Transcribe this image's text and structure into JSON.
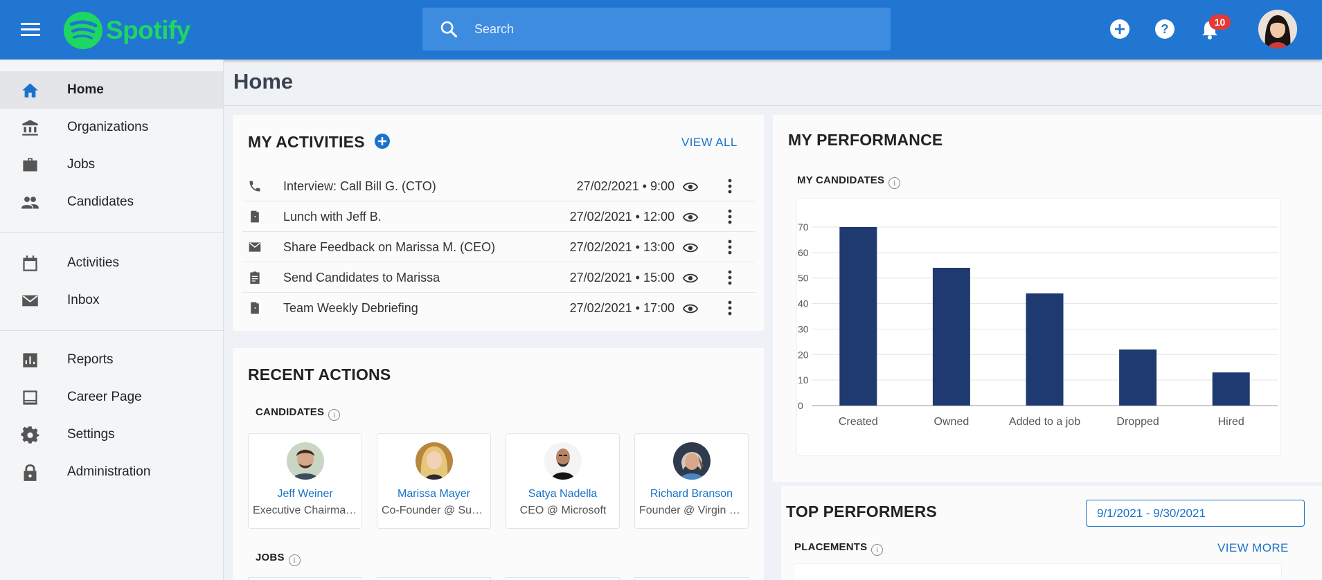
{
  "header": {
    "logo_text": "Spotify",
    "search_placeholder": "Search",
    "notification_count": "10"
  },
  "sidebar": {
    "items": [
      {
        "label": "Home",
        "icon": "home-icon"
      },
      {
        "label": "Organizations",
        "icon": "bank-icon"
      },
      {
        "label": "Jobs",
        "icon": "briefcase-icon"
      },
      {
        "label": "Candidates",
        "icon": "people-icon"
      },
      {
        "label": "Activities",
        "icon": "calendar-icon"
      },
      {
        "label": "Inbox",
        "icon": "mail-icon"
      },
      {
        "label": "Reports",
        "icon": "bar-chart-icon"
      },
      {
        "label": "Career Page",
        "icon": "web-page-icon"
      },
      {
        "label": "Settings",
        "icon": "gear-icon"
      },
      {
        "label": "Administration",
        "icon": "lock-icon"
      }
    ]
  },
  "page": {
    "title": "Home"
  },
  "activities": {
    "title": "MY ACTIVITIES",
    "view_all": "VIEW ALL",
    "items": [
      {
        "icon": "phone-icon",
        "title": "Interview: Call Bill G. (CTO)",
        "date": "27/02/2021 • 9:00"
      },
      {
        "icon": "door-icon",
        "title": "Lunch with Jeff B.",
        "date": "27/02/2021 • 12:00"
      },
      {
        "icon": "mail-icon",
        "title": "Share Feedback on Marissa M. (CEO)",
        "date": "27/02/2021 • 13:00"
      },
      {
        "icon": "clipboard-icon",
        "title": "Send Candidates to Marissa",
        "date": "27/02/2021 • 15:00"
      },
      {
        "icon": "door-icon",
        "title": "Team Weekly Debriefing",
        "date": "27/02/2021 • 17:00"
      }
    ]
  },
  "recent": {
    "title": "RECENT ACTIONS",
    "candidates_label": "CANDIDATES",
    "jobs_label": "JOBS",
    "candidates": [
      {
        "name": "Jeff Weiner",
        "role": "Executive Chairman @ LinkedIn"
      },
      {
        "name": "Marissa Mayer",
        "role": "Co-Founder @ Sunshine"
      },
      {
        "name": "Satya Nadella",
        "role": "CEO @ Microsoft"
      },
      {
        "name": "Richard Branson",
        "role": "Founder @ Virgin Group"
      }
    ]
  },
  "performance": {
    "title": "MY PERFORMANCE",
    "candidates_label": "MY CANDIDATES"
  },
  "top": {
    "title": "TOP PERFORMERS",
    "date_range": "9/1/2021 - 9/30/2021",
    "placements_label": "PLACEMENTS",
    "view_more": "VIEW MORE"
  },
  "colors": {
    "topbar": "#2176d2",
    "accent": "#1a73c9",
    "bar": "#1f3a70",
    "spotify": "#1ed760"
  },
  "chart_data": {
    "type": "bar",
    "title": "MY CANDIDATES",
    "categories": [
      "Created",
      "Owned",
      "Added to a job",
      "Dropped",
      "Hired"
    ],
    "values": [
      70,
      54,
      44,
      22,
      13
    ],
    "ylim": [
      0,
      70
    ],
    "yticks": [
      "0",
      "10",
      "20",
      "30",
      "40",
      "50",
      "60",
      "70"
    ],
    "grid": true
  }
}
